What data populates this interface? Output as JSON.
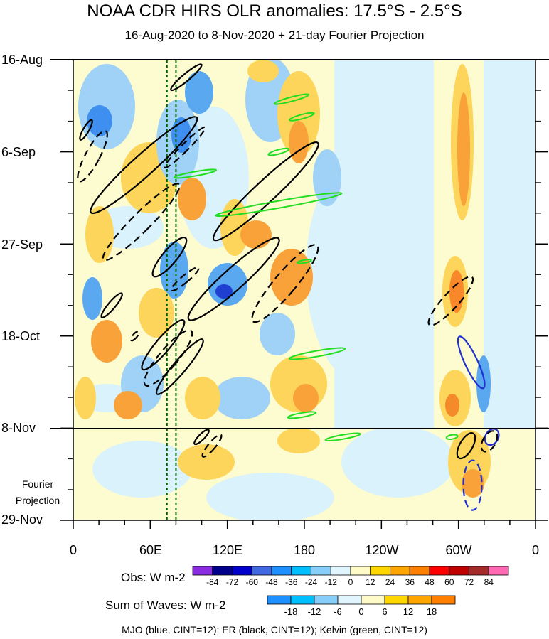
{
  "title": "NOAA CDR HIRS OLR anomalies: 17.5°S - 2.5°S",
  "subtitle": "16-Aug-2020 to 8-Nov-2020 + 21-day Fourier Projection",
  "projection_label_1": "Fourier",
  "projection_label_2": "Projection",
  "obs_label": "Obs: W m-2",
  "waves_label": "Sum of Waves: W m-2",
  "footer": "MJO (blue, CINT=12); ER (black, CINT=12); Kelvin (green, CINT=12)",
  "colors": {
    "mjo": "#1f2fd0",
    "er": "#000000",
    "kelvin": "#22dd22",
    "vline": "#006400",
    "background_fill": "#fdfbd0"
  },
  "chart_data": {
    "type": "heatmap",
    "title": "NOAA CDR HIRS OLR anomalies: 17.5°S - 2.5°S",
    "subtitle": "16-Aug-2020 to 8-Nov-2020 + 21-day Fourier Projection",
    "x_axis": {
      "ticks": [
        "0",
        "60E",
        "120E",
        "180",
        "120W",
        "60W",
        "0"
      ],
      "range_deg": [
        0,
        360
      ]
    },
    "y_axis": {
      "ticks": [
        "16-Aug",
        "6-Sep",
        "27-Sep",
        "18-Oct",
        "8-Nov",
        "29-Nov"
      ],
      "range_days": [
        0,
        105
      ],
      "observed_end_day": 84
    },
    "obs_colorbar": {
      "labels": [
        "-84",
        "-72",
        "-60",
        "-48",
        "-36",
        "-24",
        "-12",
        "0",
        "12",
        "24",
        "36",
        "48",
        "60",
        "72",
        "84"
      ],
      "colors": [
        "#8a2be2",
        "#00008b",
        "#0000cd",
        "#4169e1",
        "#1e90ff",
        "#00bfff",
        "#87cefa",
        "#e0f5fd",
        "#fffbc8",
        "#ffd700",
        "#ffa500",
        "#ff7f00",
        "#ff0000",
        "#c00000",
        "#a52a2a",
        "#ff69b4"
      ]
    },
    "waves_colorbar": {
      "labels": [
        "-18",
        "-12",
        "-6",
        "0",
        "6",
        "12",
        "18"
      ],
      "colors": [
        "#1e90ff",
        "#00bfff",
        "#87cefa",
        "#e0f5fd",
        "#fffbc8",
        "#ffd700",
        "#ffa500",
        "#ff7f00"
      ]
    },
    "vertical_lines_lon": [
      73,
      80
    ],
    "contours": [
      {
        "wave": "MJO",
        "style": "solid",
        "lon": 310,
        "day": 69,
        "rx": 9,
        "ry": 40,
        "rot": -25
      },
      {
        "wave": "MJO",
        "style": "dashed",
        "lon": 311,
        "day": 97,
        "rx": 13,
        "ry": 35,
        "rot": 0
      },
      {
        "wave": "MJO",
        "style": "solid",
        "lon": 326,
        "day": 86,
        "rx": 9,
        "ry": 12,
        "rot": 30
      },
      {
        "wave": "ER",
        "style": "solid",
        "lon": 88,
        "day": 4,
        "rx": 5,
        "ry": 28,
        "rot": 50
      },
      {
        "wave": "ER",
        "style": "solid",
        "lon": 10,
        "day": 16,
        "rx": 4,
        "ry": 16,
        "rot": 30
      },
      {
        "wave": "ER",
        "style": "dashed",
        "lon": 15,
        "day": 22,
        "rx": 10,
        "ry": 40,
        "rot": 28
      },
      {
        "wave": "ER",
        "style": "solid",
        "lon": 55,
        "day": 24,
        "rx": 15,
        "ry": 100,
        "rot": 48
      },
      {
        "wave": "ER",
        "style": "dashed",
        "lon": 87,
        "day": 20,
        "rx": 5,
        "ry": 40,
        "rot": 45
      },
      {
        "wave": "ER",
        "style": "dashed",
        "lon": 53,
        "day": 37,
        "rx": 13,
        "ry": 75,
        "rot": 45
      },
      {
        "wave": "ER",
        "style": "solid",
        "lon": 150,
        "day": 30,
        "rx": 15,
        "ry": 100,
        "rot": 47
      },
      {
        "wave": "ER",
        "style": "solid",
        "lon": 75,
        "day": 45,
        "rx": 10,
        "ry": 35,
        "rot": 40
      },
      {
        "wave": "ER",
        "style": "dashed",
        "lon": 87,
        "day": 50,
        "rx": 5,
        "ry": 25,
        "rot": 50
      },
      {
        "wave": "ER",
        "style": "solid",
        "lon": 125,
        "day": 50,
        "rx": 15,
        "ry": 85,
        "rot": 48
      },
      {
        "wave": "ER",
        "style": "dashed",
        "lon": 165,
        "day": 51,
        "rx": 15,
        "ry": 70,
        "rot": 40
      },
      {
        "wave": "ER",
        "style": "solid",
        "lon": 30,
        "day": 56,
        "rx": 5,
        "ry": 22,
        "rot": 40
      },
      {
        "wave": "ER",
        "style": "dashed",
        "lon": 48,
        "day": 63,
        "rx": 3,
        "ry": 8,
        "rot": 40
      },
      {
        "wave": "ER",
        "style": "solid",
        "lon": 70,
        "day": 65,
        "rx": 10,
        "ry": 45,
        "rot": 40
      },
      {
        "wave": "ER",
        "style": "dashed",
        "lon": 74,
        "day": 68,
        "rx": 13,
        "ry": 50,
        "rot": 40
      },
      {
        "wave": "ER",
        "style": "solid",
        "lon": 83,
        "day": 70,
        "rx": 9,
        "ry": 50,
        "rot": 40
      },
      {
        "wave": "ER",
        "style": "dashed",
        "lon": 294,
        "day": 55,
        "rx": 11,
        "ry": 45,
        "rot": 42
      },
      {
        "wave": "ER",
        "style": "solid",
        "lon": 306,
        "day": 88,
        "rx": 9,
        "ry": 20,
        "rot": 30
      },
      {
        "wave": "ER",
        "style": "dashed",
        "lon": 324,
        "day": 87,
        "rx": 9,
        "ry": 16,
        "rot": 30
      },
      {
        "wave": "ER",
        "style": "solid",
        "lon": 100,
        "day": 86,
        "rx": 4,
        "ry": 14,
        "rot": 45
      },
      {
        "wave": "ER",
        "style": "dashed",
        "lon": 108,
        "day": 88,
        "rx": 5,
        "ry": 20,
        "rot": 40
      },
      {
        "wave": "Kelvin",
        "style": "solid",
        "lon": 160,
        "day": 33,
        "rx": 5,
        "ry": 90,
        "rot": 80
      },
      {
        "wave": "Kelvin",
        "style": "solid",
        "lon": 170,
        "day": 9,
        "rx": 3,
        "ry": 25,
        "rot": 75
      },
      {
        "wave": "Kelvin",
        "style": "solid",
        "lon": 178,
        "day": 13,
        "rx": 3,
        "ry": 18,
        "rot": 75
      },
      {
        "wave": "Kelvin",
        "style": "solid",
        "lon": 160,
        "day": 21,
        "rx": 3,
        "ry": 15,
        "rot": 75
      },
      {
        "wave": "Kelvin",
        "style": "solid",
        "lon": 95,
        "day": 26,
        "rx": 3,
        "ry": 30,
        "rot": 80
      },
      {
        "wave": "Kelvin",
        "style": "solid",
        "lon": 190,
        "day": 67,
        "rx": 4,
        "ry": 40,
        "rot": 80
      },
      {
        "wave": "Kelvin",
        "style": "solid",
        "lon": 178,
        "day": 81,
        "rx": 3,
        "ry": 20,
        "rot": 80
      },
      {
        "wave": "Kelvin",
        "style": "solid",
        "lon": 210,
        "day": 86,
        "rx": 3,
        "ry": 25,
        "rot": 80
      },
      {
        "wave": "Kelvin",
        "style": "solid",
        "lon": 295,
        "day": 86,
        "rx": 3,
        "ry": 8,
        "rot": 80
      },
      {
        "wave": "Kelvin",
        "style": "solid",
        "lon": 180,
        "day": 46,
        "rx": 2,
        "ry": 10,
        "rot": 80
      }
    ]
  }
}
